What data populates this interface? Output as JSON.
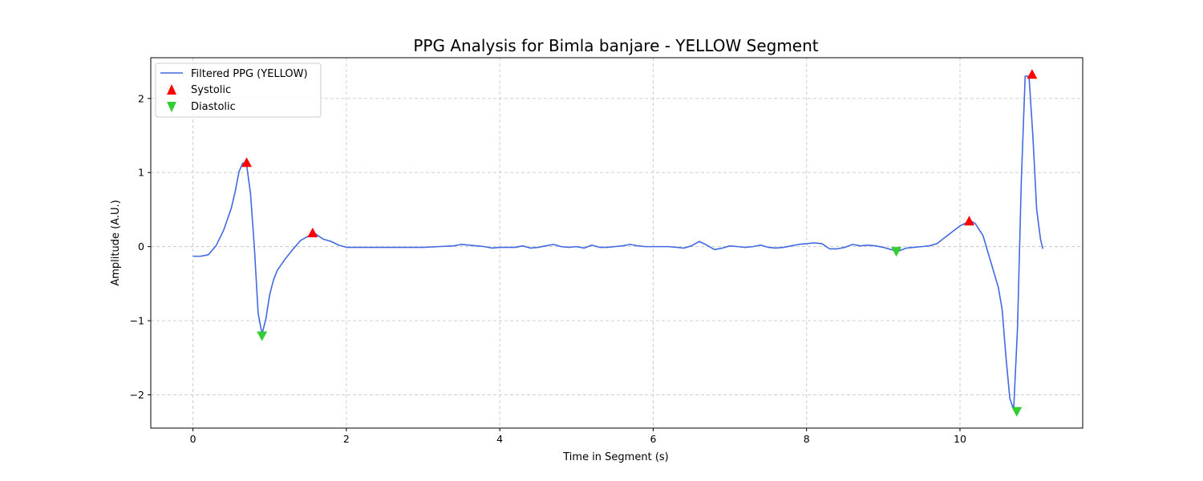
{
  "chart_data": {
    "type": "line",
    "title": "PPG Analysis for Bimla banjare - YELLOW Segment",
    "xlabel": "Time in Segment (s)",
    "ylabel": "Amplitude (A.U.)",
    "xlim": [
      -0.55,
      11.6
    ],
    "ylim": [
      -2.45,
      2.55
    ],
    "xticks": [
      0,
      2,
      4,
      6,
      8,
      10
    ],
    "xtick_labels": [
      "0",
      "2",
      "4",
      "6",
      "8",
      "10"
    ],
    "yticks": [
      -2,
      -1,
      0,
      1,
      2
    ],
    "ytick_labels": [
      "−2",
      "−1",
      "0",
      "1",
      "2"
    ],
    "grid": true,
    "legend_position": "upper-left",
    "series": [
      {
        "name": "Filtered PPG (YELLOW)",
        "kind": "line",
        "color": "#4169e1",
        "x": [
          0.0,
          0.1,
          0.2,
          0.3,
          0.4,
          0.5,
          0.55,
          0.6,
          0.65,
          0.7,
          0.75,
          0.8,
          0.85,
          0.9,
          0.95,
          1.0,
          1.05,
          1.1,
          1.2,
          1.3,
          1.4,
          1.5,
          1.6,
          1.7,
          1.8,
          1.9,
          2.0,
          2.2,
          2.4,
          2.6,
          2.8,
          3.0,
          3.2,
          3.4,
          3.5,
          3.6,
          3.7,
          3.8,
          3.9,
          4.0,
          4.1,
          4.2,
          4.3,
          4.4,
          4.5,
          4.6,
          4.7,
          4.8,
          4.9,
          5.0,
          5.1,
          5.2,
          5.3,
          5.4,
          5.5,
          5.6,
          5.7,
          5.8,
          5.9,
          6.0,
          6.2,
          6.4,
          6.5,
          6.6,
          6.7,
          6.8,
          6.9,
          7.0,
          7.1,
          7.2,
          7.3,
          7.4,
          7.5,
          7.6,
          7.7,
          7.8,
          7.9,
          8.0,
          8.1,
          8.2,
          8.3,
          8.4,
          8.5,
          8.6,
          8.7,
          8.8,
          8.9,
          9.0,
          9.1,
          9.2,
          9.3,
          9.4,
          9.5,
          9.6,
          9.7,
          9.8,
          9.9,
          10.0,
          10.1,
          10.15,
          10.2,
          10.3,
          10.4,
          10.5,
          10.55,
          10.6,
          10.65,
          10.7,
          10.75,
          10.8,
          10.85,
          10.9,
          10.95,
          11.0,
          11.05,
          11.08
        ],
        "y": [
          -0.13,
          -0.13,
          -0.11,
          0.01,
          0.22,
          0.52,
          0.74,
          1.01,
          1.13,
          1.1,
          0.72,
          0.0,
          -0.9,
          -1.18,
          -0.98,
          -0.65,
          -0.45,
          -0.32,
          -0.17,
          -0.04,
          0.08,
          0.14,
          0.17,
          0.1,
          0.07,
          0.02,
          -0.01,
          -0.01,
          -0.01,
          -0.01,
          -0.01,
          -0.01,
          0.0,
          0.01,
          0.03,
          0.02,
          0.01,
          0.0,
          -0.02,
          -0.01,
          -0.01,
          -0.01,
          0.01,
          -0.02,
          -0.01,
          0.01,
          0.03,
          0.0,
          -0.01,
          0.0,
          -0.02,
          0.02,
          -0.01,
          -0.01,
          0.0,
          0.01,
          0.03,
          0.01,
          0.0,
          0.0,
          0.0,
          -0.02,
          0.01,
          0.07,
          0.02,
          -0.04,
          -0.02,
          0.01,
          0.0,
          -0.01,
          0.0,
          0.02,
          -0.01,
          -0.02,
          -0.01,
          0.01,
          0.03,
          0.04,
          0.05,
          0.04,
          -0.03,
          -0.03,
          -0.01,
          0.03,
          0.01,
          0.02,
          0.01,
          -0.01,
          -0.04,
          -0.06,
          -0.02,
          -0.01,
          0.0,
          0.01,
          0.04,
          0.12,
          0.2,
          0.28,
          0.33,
          0.34,
          0.31,
          0.15,
          -0.2,
          -0.55,
          -0.85,
          -1.5,
          -2.05,
          -2.2,
          -1.1,
          0.9,
          2.3,
          2.3,
          1.5,
          0.5,
          0.1,
          -0.03
        ]
      },
      {
        "name": "Systolic",
        "kind": "marker",
        "marker": "triangle-up",
        "color": "#ff0000",
        "x": [
          0.7,
          1.56,
          10.12,
          10.94
        ],
        "y": [
          1.13,
          0.18,
          0.34,
          2.32
        ]
      },
      {
        "name": "Diastolic",
        "kind": "marker",
        "marker": "triangle-down",
        "color": "#32cd32",
        "x": [
          0.9,
          9.17,
          10.74
        ],
        "y": [
          -1.2,
          -0.06,
          -2.22
        ]
      }
    ]
  }
}
